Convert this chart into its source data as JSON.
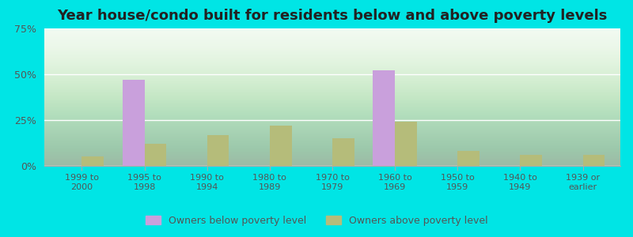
{
  "title": "Year house/condo built for residents below and above poverty levels",
  "categories": [
    "1999 to\n2000",
    "1995 to\n1998",
    "1990 to\n1994",
    "1980 to\n1989",
    "1970 to\n1979",
    "1960 to\n1969",
    "1950 to\n1959",
    "1940 to\n1949",
    "1939 or\nearlier"
  ],
  "below_poverty": [
    0,
    47,
    0,
    0,
    0,
    52,
    0,
    0,
    0
  ],
  "above_poverty": [
    5,
    12,
    17,
    22,
    15,
    24,
    8,
    6,
    6
  ],
  "below_color": "#c9a0dc",
  "above_color": "#b5bc7a",
  "outer_background": "#00e5e5",
  "ylim": [
    0,
    75
  ],
  "yticks": [
    0,
    25,
    50,
    75
  ],
  "ytick_labels": [
    "0%",
    "25%",
    "50%",
    "75%"
  ],
  "bar_width": 0.35,
  "title_fontsize": 13,
  "legend_below_label": "Owners below poverty level",
  "legend_above_label": "Owners above poverty level"
}
